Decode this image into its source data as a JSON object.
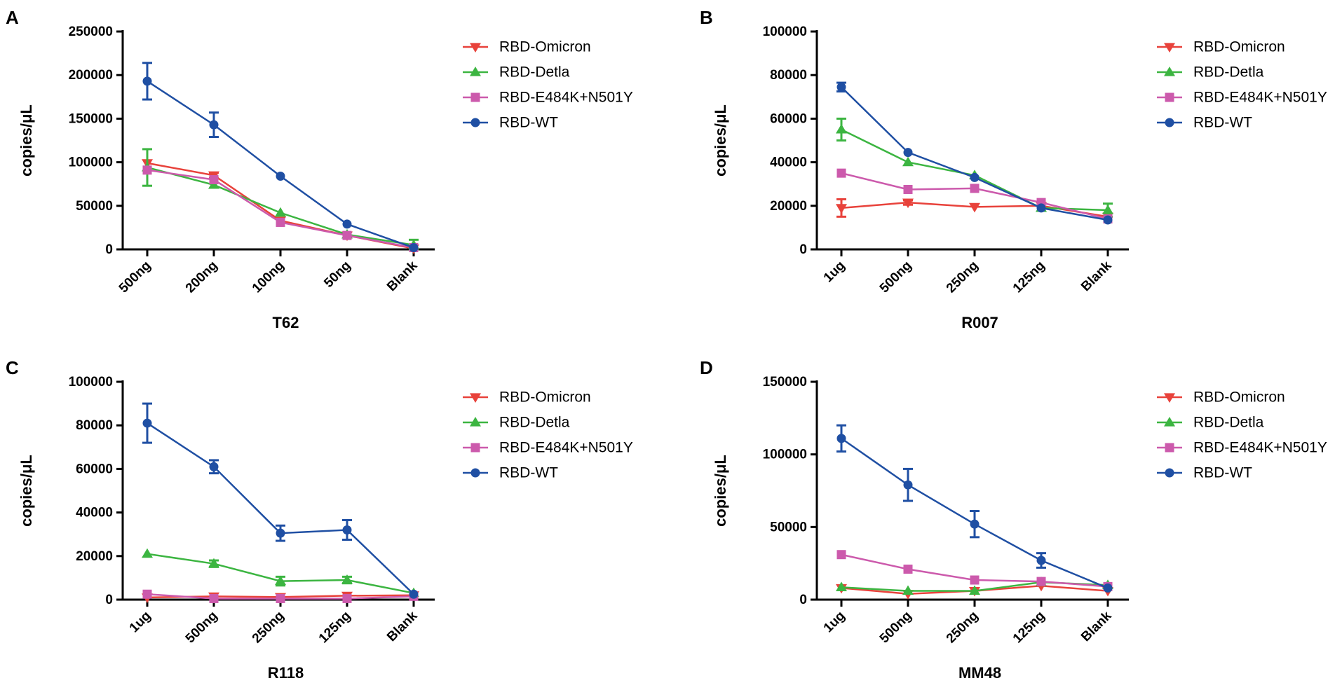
{
  "figure": {
    "title": ""
  },
  "legend_series": [
    {
      "name": "RBD-Omicron",
      "color": "#e8423b",
      "marker": "triangle-down"
    },
    {
      "name": "RBD-Detla",
      "color": "#3cb541",
      "marker": "triangle-up"
    },
    {
      "name": "RBD-E484K+N501Y",
      "color": "#cc5aac",
      "marker": "square"
    },
    {
      "name": "RBD-WT",
      "color": "#1f4fa3",
      "marker": "circle"
    }
  ],
  "chart_data": [
    {
      "type": "line",
      "panel": "A",
      "xlabel": "T62",
      "ylabel": "copies/μL",
      "ylim": [
        0,
        250000
      ],
      "yticks": [
        "0",
        "50000",
        "100000",
        "150000",
        "200000",
        "250000"
      ],
      "categories": [
        "500ng",
        "200ng",
        "100ng",
        "50ng",
        "Blank"
      ],
      "series": [
        {
          "name": "RBD-Omicron",
          "values": [
            99000,
            85000,
            33000,
            16000,
            1000
          ],
          "errors": [
            0,
            3000,
            0,
            0,
            0
          ]
        },
        {
          "name": "RBD-Detla",
          "values": [
            94000,
            74000,
            42000,
            17000,
            5000
          ],
          "errors": [
            21000,
            0,
            0,
            0,
            6000
          ]
        },
        {
          "name": "RBD-E484K+N501Y",
          "values": [
            91000,
            80000,
            31000,
            16000,
            2000
          ],
          "errors": [
            0,
            0,
            0,
            0,
            0
          ]
        },
        {
          "name": "RBD-WT",
          "values": [
            193000,
            143000,
            84000,
            29000,
            2000
          ],
          "errors": [
            21000,
            14000,
            0,
            0,
            0
          ]
        }
      ]
    },
    {
      "type": "line",
      "panel": "B",
      "xlabel": "R007",
      "ylabel": "copies/μL",
      "ylim": [
        0,
        100000
      ],
      "yticks": [
        "0",
        "20000",
        "40000",
        "60000",
        "80000",
        "100000"
      ],
      "categories": [
        "1ug",
        "500ng",
        "250ng",
        "125ng",
        "Blank"
      ],
      "series": [
        {
          "name": "RBD-Omicron",
          "values": [
            19000,
            21500,
            19500,
            20000,
            15000
          ],
          "errors": [
            4000,
            1000,
            0,
            0,
            0
          ]
        },
        {
          "name": "RBD-Detla",
          "values": [
            55000,
            40000,
            34000,
            19000,
            18000
          ],
          "errors": [
            5000,
            0,
            0,
            0,
            3000
          ]
        },
        {
          "name": "RBD-E484K+N501Y",
          "values": [
            35000,
            27500,
            28000,
            21500,
            14000
          ],
          "errors": [
            0,
            0,
            0,
            0,
            0
          ]
        },
        {
          "name": "RBD-WT",
          "values": [
            74500,
            44500,
            33000,
            19000,
            13500
          ],
          "errors": [
            2000,
            0,
            0,
            0,
            0
          ]
        }
      ]
    },
    {
      "type": "line",
      "panel": "C",
      "xlabel": "R118",
      "ylabel": "copies/μL",
      "ylim": [
        0,
        100000
      ],
      "yticks": [
        "0",
        "20000",
        "40000",
        "60000",
        "80000",
        "100000"
      ],
      "categories": [
        "1ug",
        "500ng",
        "250ng",
        "125ng",
        "Blank"
      ],
      "series": [
        {
          "name": "RBD-Omicron",
          "values": [
            1000,
            1500,
            1200,
            1800,
            2000
          ],
          "errors": [
            0,
            0,
            0,
            0,
            0
          ]
        },
        {
          "name": "RBD-Detla",
          "values": [
            21000,
            16500,
            8500,
            9000,
            3000
          ],
          "errors": [
            0,
            1500,
            2000,
            1500,
            0
          ]
        },
        {
          "name": "RBD-E484K+N501Y",
          "values": [
            2500,
            500,
            500,
            500,
            1500
          ],
          "errors": [
            0,
            0,
            0,
            0,
            0
          ]
        },
        {
          "name": "RBD-WT",
          "values": [
            81000,
            61000,
            30500,
            32000,
            2500
          ],
          "errors": [
            9000,
            3000,
            3500,
            4500,
            0
          ]
        }
      ]
    },
    {
      "type": "line",
      "panel": "D",
      "xlabel": "MM48",
      "ylabel": "copies/μL",
      "ylim": [
        0,
        150000
      ],
      "yticks": [
        "0",
        "50000",
        "100000",
        "150000"
      ],
      "categories": [
        "1ug",
        "500ng",
        "250ng",
        "125ng",
        "Blank"
      ],
      "series": [
        {
          "name": "RBD-Omicron",
          "values": [
            8000,
            4000,
            6000,
            9500,
            6000
          ],
          "errors": [
            0,
            0,
            0,
            0,
            0
          ]
        },
        {
          "name": "RBD-Detla",
          "values": [
            8500,
            6000,
            6000,
            12000,
            10000
          ],
          "errors": [
            0,
            0,
            0,
            0,
            0
          ]
        },
        {
          "name": "RBD-E484K+N501Y",
          "values": [
            31000,
            21000,
            13500,
            12500,
            9000
          ],
          "errors": [
            0,
            0,
            0,
            0,
            0
          ]
        },
        {
          "name": "RBD-WT",
          "values": [
            111000,
            79000,
            52000,
            27000,
            8000
          ],
          "errors": [
            9000,
            11000,
            9000,
            5000,
            0
          ]
        }
      ]
    }
  ]
}
